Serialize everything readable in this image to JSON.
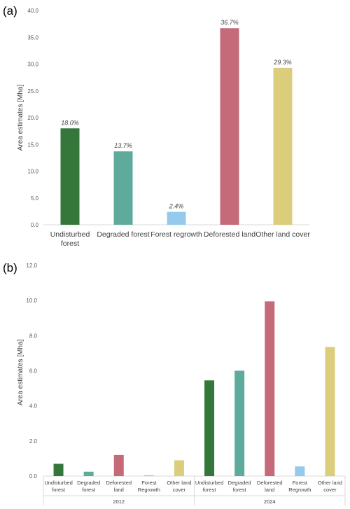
{
  "panels": {
    "a": "(a)",
    "b": "(b)"
  },
  "chart_data": [
    {
      "type": "bar",
      "panel": "(a)",
      "ylabel": "Area estimates [Mha]",
      "ylim": [
        0,
        40
      ],
      "yticks": [
        "0.0",
        "5.0",
        "10.0",
        "15.0",
        "20.0",
        "25.0",
        "30.0",
        "35.0",
        "40.0"
      ],
      "grid": false,
      "categories": [
        [
          "Undisturbed",
          "forest"
        ],
        [
          "Degraded forest"
        ],
        [
          "Forest regrowth"
        ],
        [
          "Deforested land"
        ],
        [
          "Other land cover"
        ]
      ],
      "values": [
        18.0,
        13.7,
        2.4,
        36.7,
        29.3
      ],
      "data_labels": [
        "18.0%",
        "13.7%",
        "2.4%",
        "36.7%",
        "29.3%"
      ],
      "colors": [
        "#35773a",
        "#5eab9c",
        "#94cbec",
        "#c46a78",
        "#dccd7d"
      ]
    },
    {
      "type": "bar",
      "panel": "(b)",
      "ylabel": "Area estimates [Mha]",
      "ylim": [
        0,
        12
      ],
      "yticks": [
        "0.0",
        "2.0",
        "4.0",
        "6.0",
        "8.0",
        "10.0",
        "12.0"
      ],
      "grid": false,
      "groups": [
        {
          "name": "2012",
          "categories": [
            [
              "Undisturbed",
              "forest"
            ],
            [
              "Degraded",
              "forest"
            ],
            [
              "Deforested",
              "land"
            ],
            [
              "Forest",
              "Regrowth"
            ],
            [
              "Other land",
              "cover"
            ]
          ],
          "values": [
            0.7,
            0.25,
            1.2,
            0.05,
            0.9
          ]
        },
        {
          "name": "2024",
          "categories": [
            [
              "Undisturbed",
              "forest"
            ],
            [
              "Degraded",
              "forest"
            ],
            [
              "Deforested",
              "land"
            ],
            [
              "Forest",
              "Regrowth"
            ],
            [
              "Other land",
              "cover"
            ]
          ],
          "values": [
            5.45,
            6.0,
            9.95,
            0.55,
            7.35
          ]
        }
      ],
      "colors": [
        "#35773a",
        "#5eab9c",
        "#c46a78",
        "#94cbec",
        "#dccd7d"
      ]
    }
  ]
}
